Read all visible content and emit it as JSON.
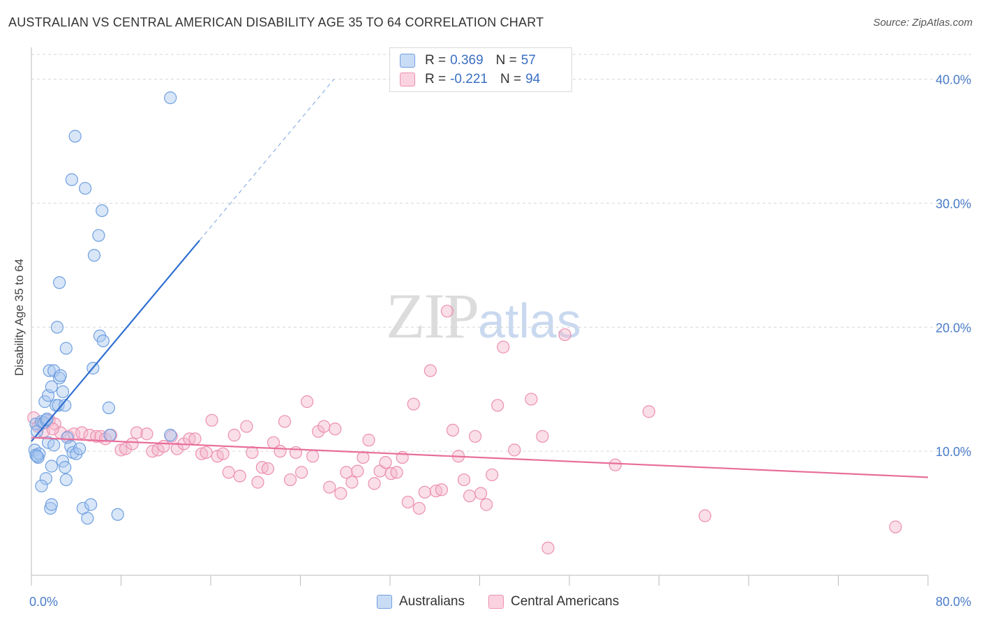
{
  "title": "AUSTRALIAN VS CENTRAL AMERICAN DISABILITY AGE 35 TO 64 CORRELATION CHART",
  "source": "Source: ZipAtlas.com",
  "watermark": {
    "zip": "ZIP",
    "atlas": "atlas"
  },
  "legend": {
    "rows": [
      {
        "r_label": "R =",
        "r_value": "0.369",
        "n_label": "N =",
        "n_value": "57",
        "color": "#a9c8f0"
      },
      {
        "r_label": "R =",
        "r_value": "-0.221",
        "n_label": "N =",
        "n_value": "94",
        "color": "#f5b8cc"
      }
    ]
  },
  "bottom_legend": [
    {
      "label": "Australians",
      "color": "#a9c8f0"
    },
    {
      "label": "Central Americans",
      "color": "#f5b8cc"
    }
  ],
  "chart_data": {
    "type": "scatter",
    "title": "AUSTRALIAN VS CENTRAL AMERICAN DISABILITY AGE 35 TO 64 CORRELATION CHART",
    "xlabel": "",
    "ylabel": "Disability Age 35 to 64",
    "xlim": [
      0,
      80
    ],
    "ylim": [
      0,
      42
    ],
    "x_tick_labels": [
      "0.0%",
      "80.0%"
    ],
    "y_ticks": [
      10,
      20,
      30,
      40
    ],
    "y_tick_labels": [
      "10.0%",
      "20.0%",
      "30.0%",
      "40.0%"
    ],
    "grid": true,
    "legend_position": "top-center",
    "series": [
      {
        "name": "Australians",
        "color": "#6f9fe0",
        "fill": "#a9c8f0",
        "trend": {
          "x0": 0.0,
          "y0": 10.8,
          "x1": 15.0,
          "y1": 27.0,
          "dash_to_x": 27.0,
          "dash_to_y": 40.0,
          "color": "#2f6fd1"
        },
        "points": [
          [
            0.4,
            12.2
          ],
          [
            0.5,
            11.6
          ],
          [
            0.3,
            10.1
          ],
          [
            0.4,
            9.7
          ],
          [
            0.6,
            9.5
          ],
          [
            0.7,
            9.8
          ],
          [
            0.5,
            9.6
          ],
          [
            0.9,
            12.4
          ],
          [
            1.1,
            12.3
          ],
          [
            1.3,
            12.5
          ],
          [
            1.4,
            12.6
          ],
          [
            1.2,
            14.0
          ],
          [
            1.5,
            14.5
          ],
          [
            1.6,
            16.5
          ],
          [
            1.8,
            15.2
          ],
          [
            2.0,
            16.5
          ],
          [
            2.2,
            13.7
          ],
          [
            2.4,
            13.7
          ],
          [
            2.5,
            15.9
          ],
          [
            2.6,
            16.1
          ],
          [
            2.8,
            14.8
          ],
          [
            3.0,
            13.7
          ],
          [
            2.3,
            20.0
          ],
          [
            3.1,
            18.3
          ],
          [
            2.5,
            23.6
          ],
          [
            3.6,
            31.9
          ],
          [
            3.9,
            35.4
          ],
          [
            4.8,
            31.2
          ],
          [
            5.6,
            25.8
          ],
          [
            6.0,
            27.4
          ],
          [
            6.3,
            29.4
          ],
          [
            6.1,
            19.3
          ],
          [
            6.4,
            18.9
          ],
          [
            5.5,
            16.7
          ],
          [
            6.9,
            13.5
          ],
          [
            7.0,
            11.3
          ],
          [
            12.4,
            11.3
          ],
          [
            12.4,
            38.5
          ],
          [
            1.5,
            10.7
          ],
          [
            2.0,
            10.5
          ],
          [
            3.2,
            11.1
          ],
          [
            3.5,
            10.4
          ],
          [
            3.7,
            9.9
          ],
          [
            4.0,
            9.8
          ],
          [
            4.3,
            10.2
          ],
          [
            2.8,
            9.2
          ],
          [
            3.0,
            8.7
          ],
          [
            1.8,
            8.8
          ],
          [
            1.3,
            7.8
          ],
          [
            3.1,
            7.7
          ],
          [
            0.9,
            7.2
          ],
          [
            1.7,
            5.4
          ],
          [
            1.8,
            5.7
          ],
          [
            4.6,
            5.4
          ],
          [
            5.3,
            5.7
          ],
          [
            7.7,
            4.9
          ],
          [
            5.0,
            4.6
          ]
        ]
      },
      {
        "name": "Central Americans",
        "color": "#ec8fb0",
        "fill": "#f5b8cc",
        "trend": {
          "x0": 0.0,
          "y0": 11.1,
          "x1": 80.0,
          "y1": 7.9,
          "color": "#e86d9a"
        },
        "points": [
          [
            0.2,
            12.7
          ],
          [
            0.8,
            12.2
          ],
          [
            1.2,
            12.3
          ],
          [
            1.6,
            12.5
          ],
          [
            2.1,
            12.2
          ],
          [
            2.6,
            11.5
          ],
          [
            3.3,
            11.2
          ],
          [
            3.8,
            11.4
          ],
          [
            4.5,
            11.5
          ],
          [
            5.2,
            11.3
          ],
          [
            5.8,
            11.2
          ],
          [
            6.2,
            11.2
          ],
          [
            6.6,
            11.0
          ],
          [
            7.1,
            11.3
          ],
          [
            8.0,
            10.1
          ],
          [
            8.4,
            10.2
          ],
          [
            9.0,
            10.6
          ],
          [
            9.4,
            11.5
          ],
          [
            10.3,
            11.4
          ],
          [
            10.8,
            10.0
          ],
          [
            11.3,
            10.1
          ],
          [
            11.8,
            10.4
          ],
          [
            12.5,
            11.2
          ],
          [
            13.0,
            10.2
          ],
          [
            13.6,
            10.6
          ],
          [
            14.1,
            11.0
          ],
          [
            14.6,
            11.0
          ],
          [
            15.2,
            9.8
          ],
          [
            15.6,
            9.9
          ],
          [
            16.1,
            12.5
          ],
          [
            16.6,
            9.6
          ],
          [
            17.1,
            9.8
          ],
          [
            17.6,
            8.3
          ],
          [
            18.1,
            11.3
          ],
          [
            18.6,
            8.0
          ],
          [
            19.2,
            12.0
          ],
          [
            19.7,
            9.9
          ],
          [
            20.2,
            7.5
          ],
          [
            20.6,
            8.7
          ],
          [
            21.1,
            8.6
          ],
          [
            21.6,
            10.7
          ],
          [
            22.2,
            10.0
          ],
          [
            22.6,
            12.4
          ],
          [
            23.1,
            7.7
          ],
          [
            23.6,
            9.9
          ],
          [
            24.1,
            8.3
          ],
          [
            24.6,
            14.0
          ],
          [
            25.1,
            9.6
          ],
          [
            25.6,
            11.6
          ],
          [
            26.1,
            12.0
          ],
          [
            26.6,
            7.1
          ],
          [
            27.1,
            11.8
          ],
          [
            27.6,
            6.6
          ],
          [
            28.1,
            8.3
          ],
          [
            28.6,
            7.5
          ],
          [
            29.1,
            8.4
          ],
          [
            29.6,
            9.5
          ],
          [
            30.1,
            10.9
          ],
          [
            30.6,
            7.4
          ],
          [
            31.1,
            8.4
          ],
          [
            31.6,
            9.1
          ],
          [
            32.1,
            8.2
          ],
          [
            32.6,
            8.3
          ],
          [
            33.1,
            9.5
          ],
          [
            33.6,
            5.9
          ],
          [
            34.1,
            13.8
          ],
          [
            34.6,
            5.4
          ],
          [
            35.1,
            6.7
          ],
          [
            35.6,
            16.5
          ],
          [
            36.1,
            6.8
          ],
          [
            36.6,
            6.9
          ],
          [
            37.1,
            21.3
          ],
          [
            37.6,
            11.7
          ],
          [
            38.1,
            9.6
          ],
          [
            38.6,
            7.7
          ],
          [
            39.1,
            6.4
          ],
          [
            39.6,
            11.2
          ],
          [
            40.1,
            6.6
          ],
          [
            40.6,
            5.7
          ],
          [
            41.1,
            8.1
          ],
          [
            41.6,
            13.7
          ],
          [
            42.1,
            18.4
          ],
          [
            43.1,
            10.1
          ],
          [
            44.6,
            14.2
          ],
          [
            45.6,
            11.2
          ],
          [
            46.1,
            2.2
          ],
          [
            47.6,
            19.4
          ],
          [
            52.1,
            8.9
          ],
          [
            55.1,
            13.2
          ],
          [
            60.1,
            4.8
          ],
          [
            77.1,
            3.9
          ],
          [
            1.1,
            11.6
          ],
          [
            0.6,
            12.0
          ],
          [
            1.9,
            11.8
          ]
        ]
      }
    ]
  }
}
